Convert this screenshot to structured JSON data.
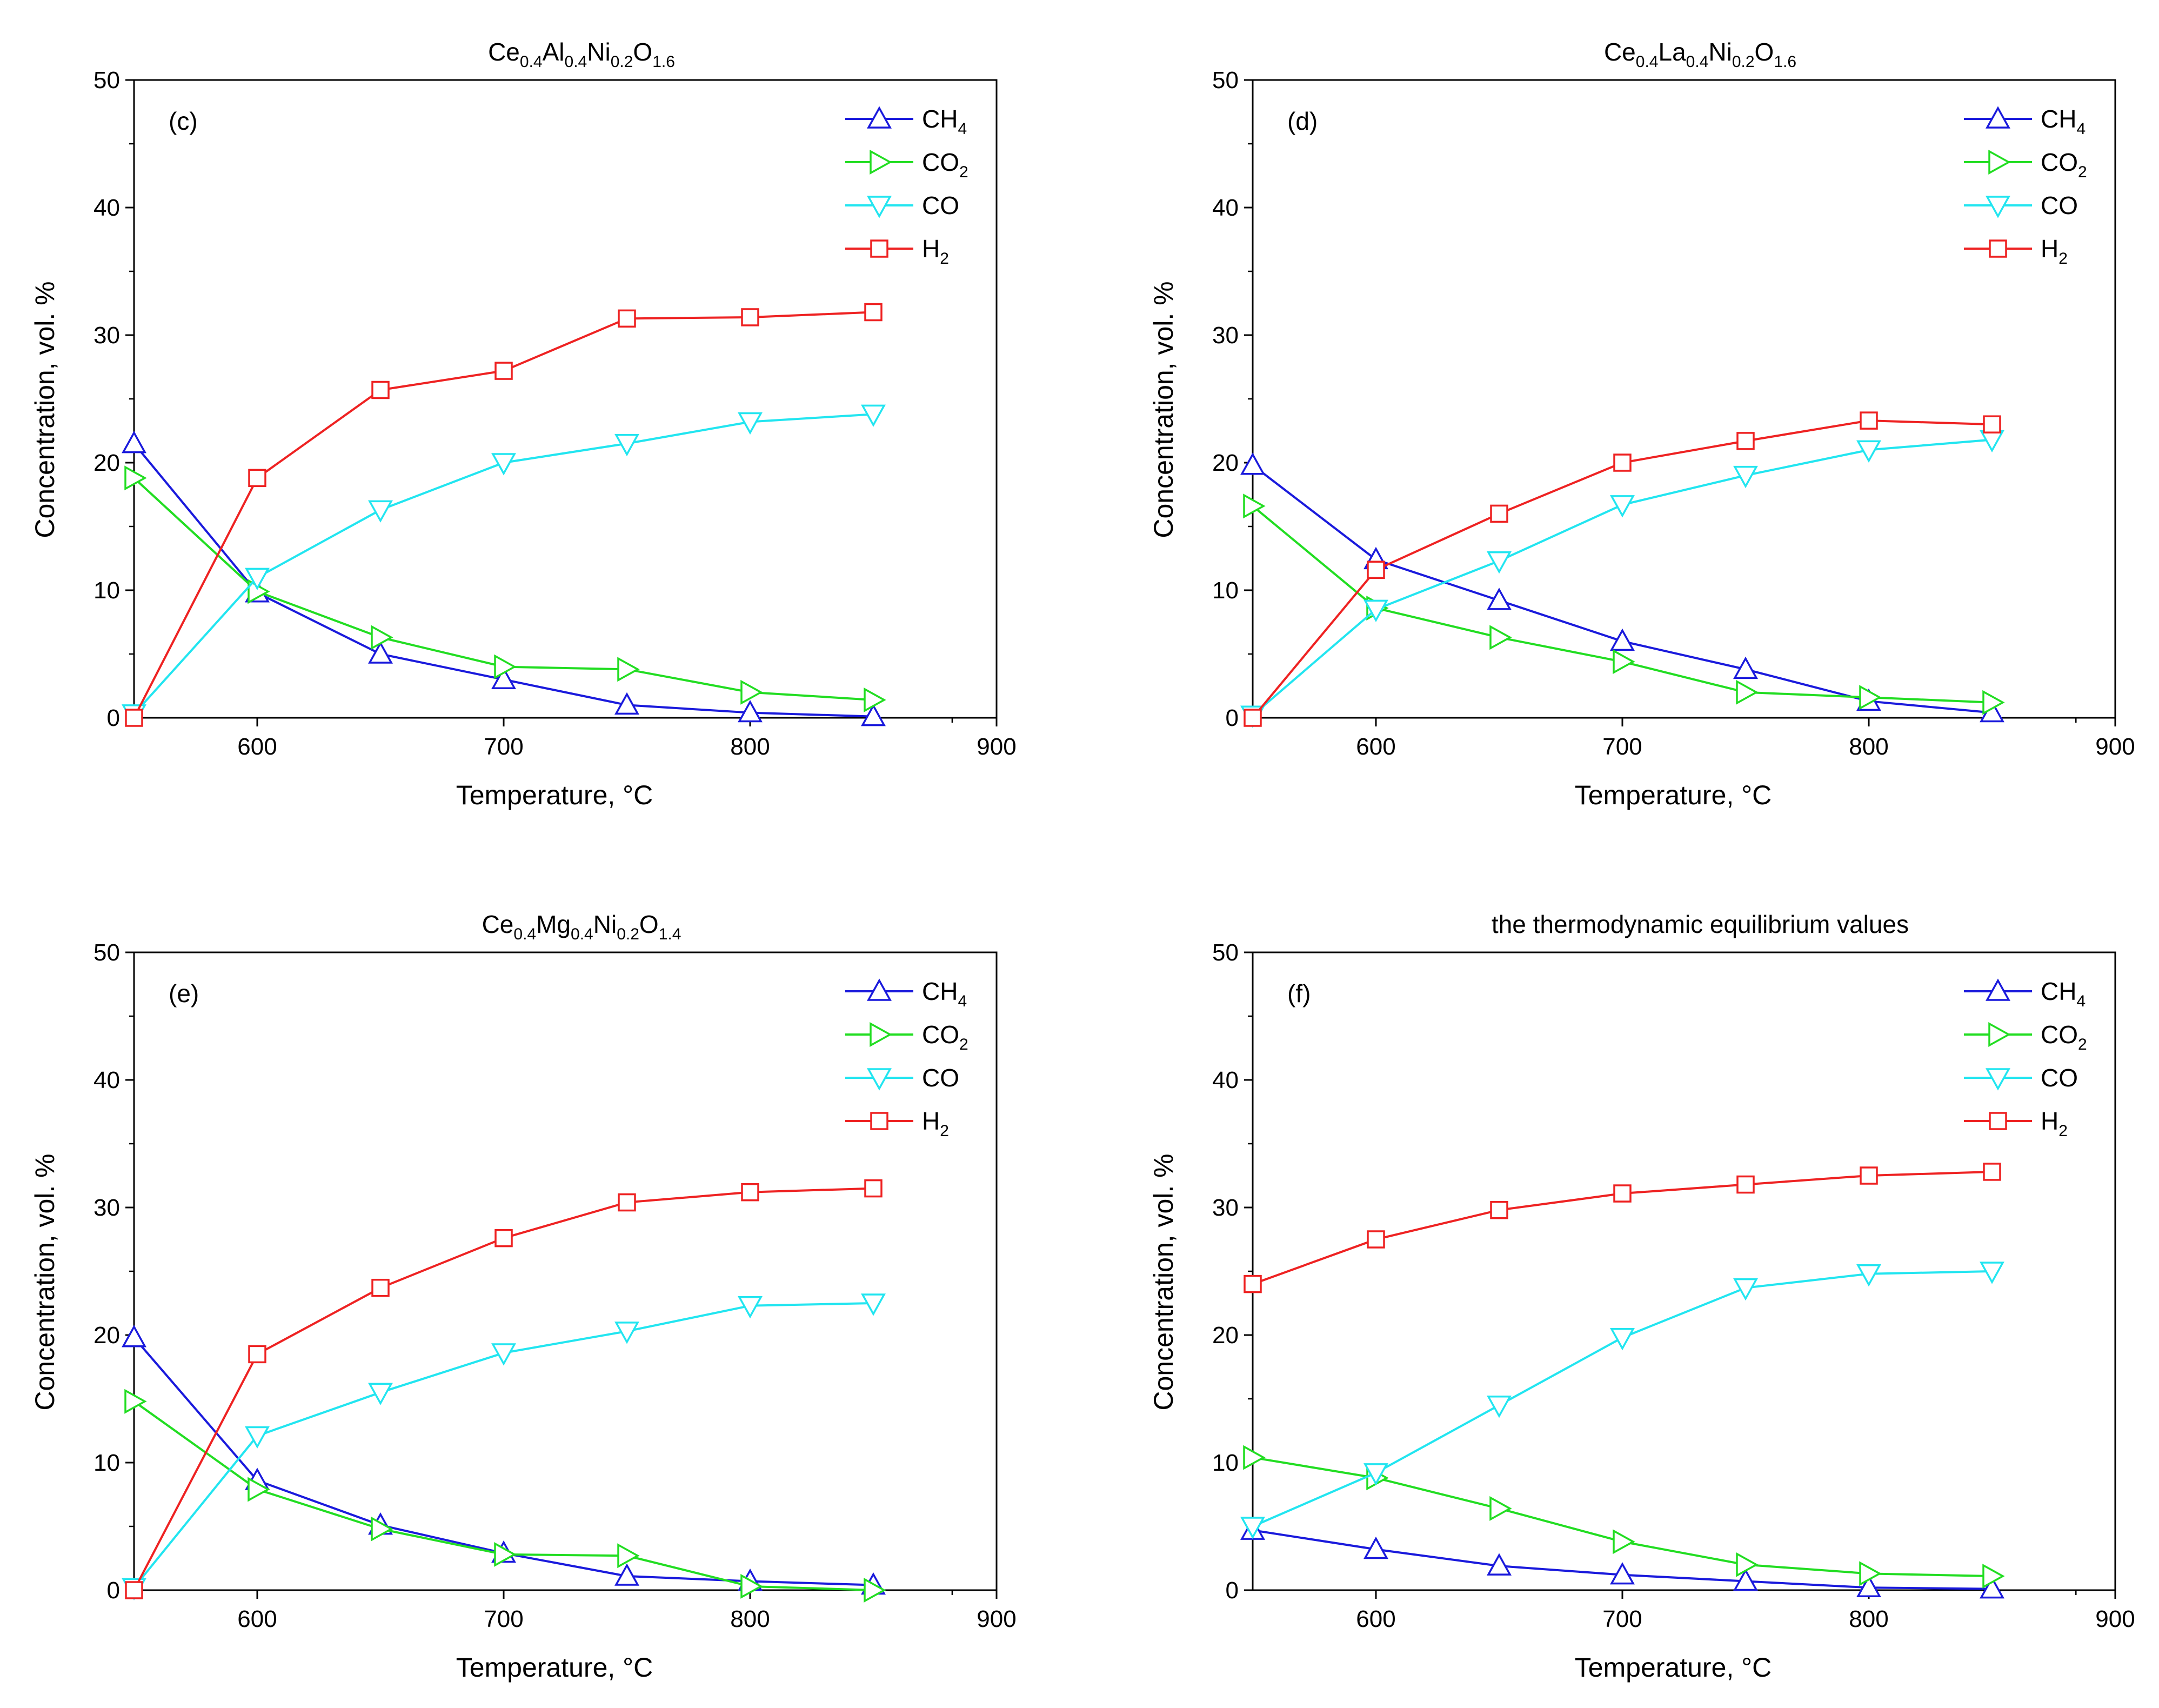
{
  "chart_data": [
    {
      "type": "line",
      "panel_label": "(c)",
      "title_parts": [
        [
          "Ce",
          ""
        ],
        [
          "0.4",
          "sub"
        ],
        [
          "Al",
          ""
        ],
        [
          "0.4",
          "sub"
        ],
        [
          "Ni",
          ""
        ],
        [
          "0.2",
          "sub"
        ],
        [
          "O",
          ""
        ],
        [
          "1.6",
          "sub"
        ]
      ],
      "xlabel": "Temperature, °C",
      "ylabel": "Concentration, vol. %",
      "xlim": [
        550,
        900
      ],
      "ylim": [
        0,
        50
      ],
      "xticks": [
        600,
        700,
        800,
        900
      ],
      "yticks": [
        0,
        10,
        20,
        30,
        40,
        50
      ],
      "x": [
        550,
        600,
        650,
        700,
        750,
        800,
        850
      ],
      "legend_position": "top-right",
      "series": [
        {
          "name": "CH4",
          "label_parts": [
            [
              "CH",
              ""
            ],
            [
              "4",
              "sub"
            ]
          ],
          "marker": "triangle-up",
          "color": "#1a1adc",
          "values": [
            21.5,
            9.8,
            5.0,
            3.0,
            1.0,
            0.4,
            0.1
          ]
        },
        {
          "name": "CO2",
          "label_parts": [
            [
              "CO",
              ""
            ],
            [
              "2",
              "sub"
            ]
          ],
          "marker": "triangle-right",
          "color": "#22dd22",
          "values": [
            18.8,
            9.9,
            6.3,
            4.0,
            3.8,
            2.0,
            1.4
          ]
        },
        {
          "name": "CO",
          "label_parts": [
            [
              "CO",
              ""
            ]
          ],
          "marker": "triangle-down",
          "color": "#22e5f0",
          "values": [
            0.3,
            11.0,
            16.3,
            20.0,
            21.5,
            23.2,
            23.8
          ]
        },
        {
          "name": "H2",
          "label_parts": [
            [
              "H",
              ""
            ],
            [
              "2",
              "sub"
            ]
          ],
          "marker": "square",
          "color": "#ee2222",
          "values": [
            0.0,
            18.8,
            25.7,
            27.2,
            31.3,
            31.4,
            31.8
          ]
        }
      ]
    },
    {
      "type": "line",
      "panel_label": "(d)",
      "title_parts": [
        [
          "Ce",
          ""
        ],
        [
          "0.4",
          "sub"
        ],
        [
          "La",
          ""
        ],
        [
          "0.4",
          "sub"
        ],
        [
          "Ni",
          ""
        ],
        [
          "0.2",
          "sub"
        ],
        [
          "O",
          ""
        ],
        [
          "1.6",
          "sub"
        ]
      ],
      "xlabel": "Temperature, °C",
      "ylabel": "Concentration, vol. %",
      "xlim": [
        550,
        900
      ],
      "ylim": [
        0,
        50
      ],
      "xticks": [
        600,
        700,
        800,
        900
      ],
      "yticks": [
        0,
        10,
        20,
        30,
        40,
        50
      ],
      "x": [
        550,
        600,
        650,
        700,
        750,
        800,
        850
      ],
      "legend_position": "top-right",
      "series": [
        {
          "name": "CH4",
          "label_parts": [
            [
              "CH",
              ""
            ],
            [
              "4",
              "sub"
            ]
          ],
          "marker": "triangle-up",
          "color": "#1a1adc",
          "values": [
            19.8,
            12.4,
            9.2,
            6.0,
            3.8,
            1.3,
            0.4
          ]
        },
        {
          "name": "CO2",
          "label_parts": [
            [
              "CO",
              ""
            ],
            [
              "2",
              "sub"
            ]
          ],
          "marker": "triangle-right",
          "color": "#22dd22",
          "values": [
            16.6,
            8.6,
            6.3,
            4.4,
            2.0,
            1.6,
            1.2
          ]
        },
        {
          "name": "CO",
          "label_parts": [
            [
              "CO",
              ""
            ]
          ],
          "marker": "triangle-down",
          "color": "#22e5f0",
          "values": [
            0.2,
            8.5,
            12.3,
            16.7,
            19.0,
            21.0,
            21.8
          ]
        },
        {
          "name": "H2",
          "label_parts": [
            [
              "H",
              ""
            ],
            [
              "2",
              "sub"
            ]
          ],
          "marker": "square",
          "color": "#ee2222",
          "values": [
            0.0,
            11.6,
            16.0,
            20.0,
            21.7,
            23.3,
            23.0
          ]
        }
      ]
    },
    {
      "type": "line",
      "panel_label": "(e)",
      "title_parts": [
        [
          "Ce",
          ""
        ],
        [
          "0.4",
          "sub"
        ],
        [
          "Mg",
          ""
        ],
        [
          "0.4",
          "sub"
        ],
        [
          "Ni",
          ""
        ],
        [
          "0.2",
          "sub"
        ],
        [
          "O",
          ""
        ],
        [
          "1.4",
          "sub"
        ]
      ],
      "xlabel": "Temperature, °C",
      "ylabel": "Concentration, vol. %",
      "xlim": [
        550,
        900
      ],
      "ylim": [
        0,
        50
      ],
      "xticks": [
        600,
        700,
        800,
        900
      ],
      "yticks": [
        0,
        10,
        20,
        30,
        40,
        50
      ],
      "x": [
        550,
        600,
        650,
        700,
        750,
        800,
        850
      ],
      "legend_position": "top-right",
      "series": [
        {
          "name": "CH4",
          "label_parts": [
            [
              "CH",
              ""
            ],
            [
              "4",
              "sub"
            ]
          ],
          "marker": "triangle-up",
          "color": "#1a1adc",
          "values": [
            19.8,
            8.6,
            5.1,
            2.9,
            1.1,
            0.7,
            0.4
          ]
        },
        {
          "name": "CO2",
          "label_parts": [
            [
              "CO",
              ""
            ],
            [
              "2",
              "sub"
            ]
          ],
          "marker": "triangle-right",
          "color": "#22dd22",
          "values": [
            14.8,
            7.9,
            4.8,
            2.8,
            2.7,
            0.3,
            0.0
          ]
        },
        {
          "name": "CO",
          "label_parts": [
            [
              "CO",
              ""
            ]
          ],
          "marker": "triangle-down",
          "color": "#22e5f0",
          "values": [
            0.2,
            12.1,
            15.5,
            18.6,
            20.3,
            22.3,
            22.5
          ]
        },
        {
          "name": "H2",
          "label_parts": [
            [
              "H",
              ""
            ],
            [
              "2",
              "sub"
            ]
          ],
          "marker": "square",
          "color": "#ee2222",
          "values": [
            0.0,
            18.5,
            23.7,
            27.6,
            30.4,
            31.2,
            31.5
          ]
        }
      ]
    },
    {
      "type": "line",
      "panel_label": "(f)",
      "title_parts": [
        [
          "the thermodynamic equilibrium values",
          ""
        ]
      ],
      "xlabel": "Temperature, °C",
      "ylabel": "Concentration, vol. %",
      "xlim": [
        550,
        900
      ],
      "ylim": [
        0,
        50
      ],
      "xticks": [
        600,
        700,
        800,
        900
      ],
      "yticks": [
        0,
        10,
        20,
        30,
        40,
        50
      ],
      "x": [
        550,
        600,
        650,
        700,
        750,
        800,
        850
      ],
      "legend_position": "top-right",
      "series": [
        {
          "name": "CH4",
          "label_parts": [
            [
              "CH",
              ""
            ],
            [
              "4",
              "sub"
            ]
          ],
          "marker": "triangle-up",
          "color": "#1a1adc",
          "values": [
            4.7,
            3.2,
            1.9,
            1.2,
            0.7,
            0.2,
            0.1
          ]
        },
        {
          "name": "CO2",
          "label_parts": [
            [
              "CO",
              ""
            ],
            [
              "2",
              "sub"
            ]
          ],
          "marker": "triangle-right",
          "color": "#22dd22",
          "values": [
            10.4,
            8.8,
            6.4,
            3.8,
            2.0,
            1.3,
            1.1
          ]
        },
        {
          "name": "CO",
          "label_parts": [
            [
              "CO",
              ""
            ]
          ],
          "marker": "triangle-down",
          "color": "#22e5f0",
          "values": [
            5.0,
            9.2,
            14.5,
            19.8,
            23.7,
            24.8,
            25.0
          ]
        },
        {
          "name": "H2",
          "label_parts": [
            [
              "H",
              ""
            ],
            [
              "2",
              "sub"
            ]
          ],
          "marker": "square",
          "color": "#ee2222",
          "values": [
            24.0,
            27.5,
            29.8,
            31.1,
            31.8,
            32.5,
            32.8
          ]
        }
      ]
    }
  ]
}
